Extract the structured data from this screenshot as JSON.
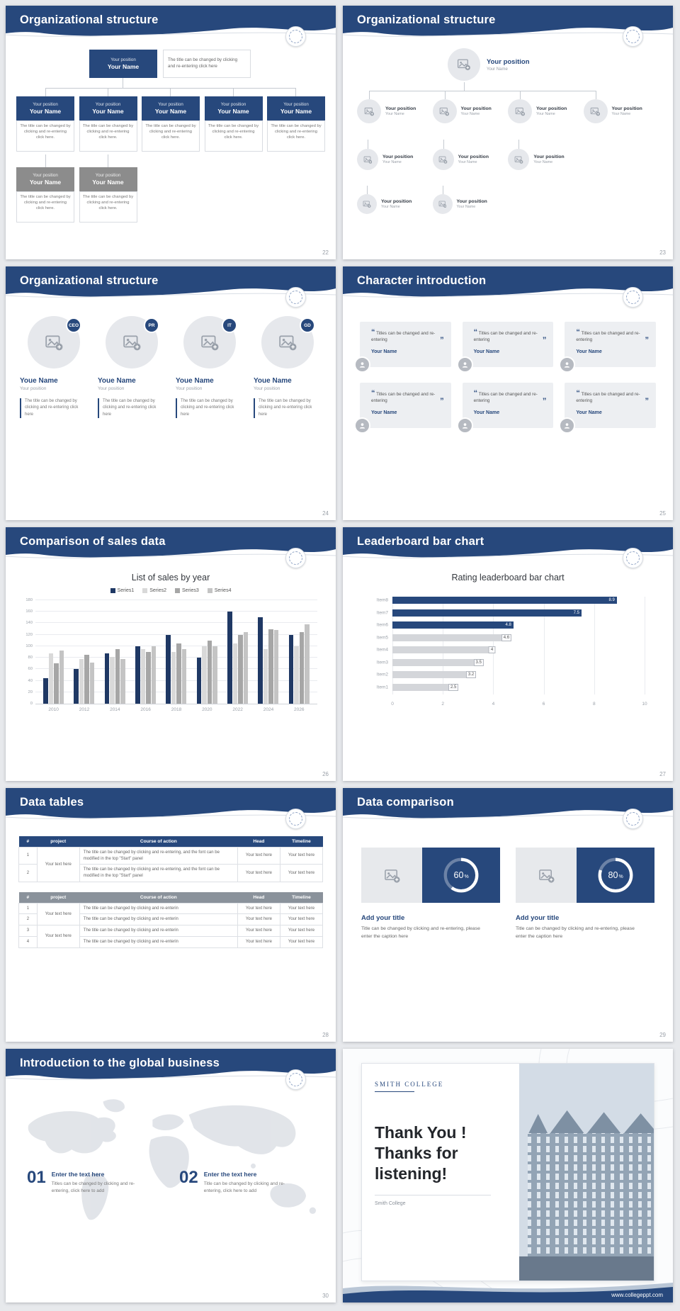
{
  "page": {
    "background": "#e7e9ec"
  },
  "theme": {
    "navy": "#27487C",
    "navy_dark": "#1F3864",
    "gray_node": "#8C8C8C"
  },
  "icons": {
    "image_placeholder": "image-plus-icon",
    "avatar": "person-icon",
    "emblem": "college-emblem-icon"
  },
  "slides": {
    "s22": {
      "title": "Organizational structure",
      "page": "22",
      "root": {
        "position": "Your position",
        "name": "Your Name",
        "desc": "The title can be changed by clicking and re-entering click here"
      },
      "node": {
        "position": "Your position",
        "name": "Your Name",
        "desc": "The title can be changed by clicking and re-entering click here."
      }
    },
    "s23": {
      "title": "Organizational structure",
      "page": "23",
      "node": {
        "position": "Your position",
        "name": "Your Name"
      }
    },
    "s24": {
      "title": "Organizational structure",
      "page": "24",
      "badges": [
        "CEO",
        "PR",
        "IT",
        "GD"
      ],
      "name": "Youe Name",
      "position": "Your position",
      "desc": "The title can be changed by clicking and re-entering click here"
    },
    "s25": {
      "title": "Character introduction",
      "page": "25",
      "card": {
        "quote_open": "“",
        "quote_close": "”",
        "text": "Titles can be changed and re-entering",
        "name": "Your Name"
      }
    },
    "s26": {
      "title": "Comparison of sales data",
      "page": "26",
      "chart_data": {
        "type": "bar",
        "title": "List of sales by year",
        "categories": [
          "2010",
          "2012",
          "2014",
          "2016",
          "2018",
          "2020",
          "2022",
          "2024",
          "2026"
        ],
        "series": [
          {
            "name": "Series1",
            "color": "#1F3864",
            "values": [
              45,
              60,
              88,
              100,
              120,
              80,
              160,
              150,
              120
            ]
          },
          {
            "name": "Series2",
            "color": "#D9D9D9",
            "values": [
              88,
              78,
              82,
              95,
              90,
              100,
              105,
              95,
              100
            ]
          },
          {
            "name": "Series3",
            "color": "#A6A6A6",
            "values": [
              70,
              85,
              95,
              90,
              105,
              110,
              120,
              130,
              125
            ]
          },
          {
            "name": "Series4",
            "color": "#C4C4C4",
            "values": [
              92,
              72,
              78,
              100,
              95,
              100,
              125,
              128,
              138
            ]
          }
        ],
        "ylim": [
          0,
          180
        ],
        "yticks": [
          0,
          20,
          40,
          60,
          80,
          100,
          120,
          140,
          160,
          180
        ],
        "legend_position": "top",
        "grid": true
      }
    },
    "s27": {
      "title": "Leaderboard bar chart",
      "page": "27",
      "chart_data": {
        "type": "bar",
        "orientation": "horizontal",
        "title": "Rating leaderboard bar chart",
        "categories": [
          "Item8",
          "Item7",
          "Item6",
          "Item5",
          "Item4",
          "Item3",
          "Item2",
          "Item1"
        ],
        "values": [
          8.9,
          7.5,
          4.8,
          4.6,
          4,
          3.5,
          3.2,
          2.5
        ],
        "bar_colors": [
          "#27487C",
          "#27487C",
          "#27487C",
          "#D4D6DA",
          "#D4D6DA",
          "#D4D6DA",
          "#D4D6DA",
          "#D4D6DA"
        ],
        "xlim": [
          0,
          10
        ],
        "xticks": [
          0,
          2,
          4,
          6,
          8,
          10
        ],
        "grid": true
      }
    },
    "s28": {
      "title": "Data tables",
      "page": "28",
      "table1": {
        "headers": [
          "#",
          "project",
          "Course of action",
          "Head",
          "Timeline"
        ],
        "rows": [
          [
            {
              "t": "1"
            },
            {
              "t": "Your text here",
              "rs": 2
            },
            {
              "t": "The title can be changed by clicking and re-entering, and the font can be modified in the top \"Start\" panel",
              "cls": "left"
            },
            {
              "t": "Your text here"
            },
            {
              "t": "Your text here"
            }
          ],
          [
            {
              "t": "2"
            },
            null,
            {
              "t": "The title can be changed by clicking and re-entering, and the font can be modified in the top \"Start\" panel",
              "cls": "left"
            },
            {
              "t": "Your text here"
            },
            {
              "t": "Your text here"
            }
          ]
        ]
      },
      "table2": {
        "headers": [
          "#",
          "project",
          "Course of action",
          "Head",
          "Timeline"
        ],
        "rows": [
          [
            {
              "t": "1"
            },
            {
              "t": "Your text here",
              "rs": 2
            },
            {
              "t": "The title can be changed by clicking and re-enterin",
              "cls": "left"
            },
            {
              "t": "Your text here"
            },
            {
              "t": "Your text here"
            }
          ],
          [
            {
              "t": "2"
            },
            null,
            {
              "t": "The title can be changed by clicking and re-enterin",
              "cls": "left"
            },
            {
              "t": "Your text here"
            },
            {
              "t": "Your text here"
            }
          ],
          [
            {
              "t": "3"
            },
            {
              "t": "Your text here",
              "rs": 2
            },
            {
              "t": "The title can be changed by clicking and re-enterin",
              "cls": "left"
            },
            {
              "t": "Your text here"
            },
            {
              "t": "Your text here"
            }
          ],
          [
            {
              "t": "4"
            },
            null,
            {
              "t": "The title can be changed by clicking and re-enterin",
              "cls": "left"
            },
            {
              "t": "Your text here"
            },
            {
              "t": "Your text here"
            }
          ]
        ]
      }
    },
    "s29": {
      "title": "Data comparison",
      "page": "29",
      "cards": [
        {
          "pct": 60,
          "pct_label": "60",
          "pct_sign": "%",
          "heading": "Add your title",
          "caption": "Title can be changed by clicking and re-entering, please enter the caption here"
        },
        {
          "pct": 80,
          "pct_label": "80",
          "pct_sign": "%",
          "heading": "Add your title",
          "caption": "Title can be changed by clicking and re-entering, please enter the caption here"
        }
      ]
    },
    "s30": {
      "title": "Introduction to the global business",
      "page": "30",
      "items": [
        {
          "num": "01",
          "heading": "Enter the text here",
          "body": "Titles can be changed by clicking and re-entering, click here to add"
        },
        {
          "num": "02",
          "heading": "Enter the text here",
          "body": "Title can be changed by clicking and re-entering, click here to add"
        }
      ]
    },
    "s31": {
      "college_header": "SMITH COLLEGE",
      "thanks_line1": "Thank You !",
      "thanks_line2": "Thanks for listening!",
      "college_sub": "Smith College",
      "url": "www.collegeppt.com"
    }
  }
}
